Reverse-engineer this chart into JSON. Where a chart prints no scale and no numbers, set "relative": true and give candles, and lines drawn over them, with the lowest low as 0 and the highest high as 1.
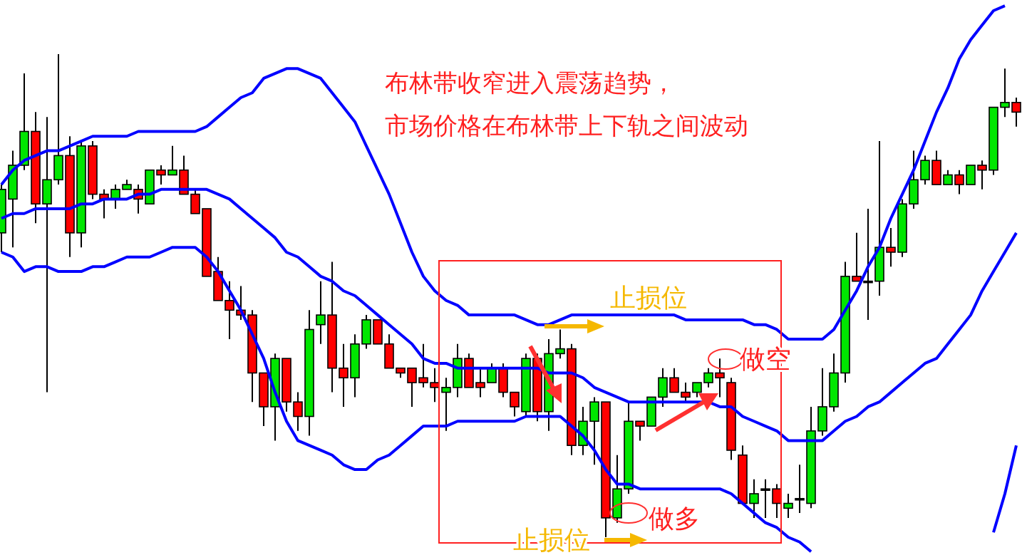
{
  "chart_data": {
    "type": "candlestick",
    "relative": true,
    "title": "布林带收窄进入震荡趋势，",
    "subtitle": "市场价格在布林带上下轨之间波动",
    "annotations": [
      "止损位",
      "做空",
      "做多",
      "止损位"
    ],
    "categories": [
      null,
      null,
      null,
      null,
      null,
      null,
      null,
      null,
      null,
      null,
      null,
      null,
      null,
      null,
      null,
      null,
      null,
      null,
      null,
      null,
      null,
      null,
      null,
      null,
      null,
      null,
      null,
      null,
      null,
      null,
      null,
      null,
      null,
      null,
      null,
      null,
      null,
      null,
      null,
      null,
      null,
      null,
      null,
      null,
      null,
      null,
      null,
      null,
      null,
      null,
      null,
      null,
      null,
      null,
      null,
      null,
      null,
      null,
      null,
      null,
      null,
      null,
      null,
      null,
      null,
      null,
      null,
      null,
      null,
      null,
      null,
      null,
      null,
      null,
      null,
      null,
      null,
      null,
      null,
      null,
      null,
      null,
      null,
      null,
      null,
      null,
      null,
      null,
      null,
      null
    ],
    "ohlc": [
      [
        0.63,
        0.73,
        0.59,
        0.72
      ],
      [
        0.7,
        0.8,
        0.6,
        0.77
      ],
      [
        0.77,
        0.96,
        0.76,
        0.84
      ],
      [
        0.84,
        0.88,
        0.65,
        0.69
      ],
      [
        0.69,
        0.87,
        0.3,
        0.74
      ],
      [
        0.74,
        1.0,
        0.73,
        0.79
      ],
      [
        0.79,
        0.83,
        0.58,
        0.63
      ],
      [
        0.63,
        0.82,
        0.6,
        0.81
      ],
      [
        0.81,
        0.82,
        0.7,
        0.71
      ],
      [
        0.71,
        0.72,
        0.66,
        0.7
      ],
      [
        0.7,
        0.73,
        0.68,
        0.72
      ],
      [
        0.72,
        0.74,
        0.72,
        0.73
      ],
      [
        0.72,
        0.73,
        0.67,
        0.7
      ],
      [
        0.69,
        0.76,
        0.69,
        0.76
      ],
      [
        0.76,
        0.77,
        0.73,
        0.75
      ],
      [
        0.75,
        0.81,
        0.75,
        0.76
      ],
      [
        0.76,
        0.79,
        0.71,
        0.71
      ],
      [
        0.71,
        0.72,
        0.67,
        0.67
      ],
      [
        0.68,
        0.68,
        0.54,
        0.54
      ],
      [
        0.55,
        0.58,
        0.49,
        0.49
      ],
      [
        0.49,
        0.53,
        0.41,
        0.47
      ],
      [
        0.47,
        0.52,
        0.45,
        0.46
      ],
      [
        0.46,
        0.47,
        0.28,
        0.34
      ],
      [
        0.34,
        0.34,
        0.23,
        0.27
      ],
      [
        0.27,
        0.38,
        0.2,
        0.37
      ],
      [
        0.37,
        0.37,
        0.26,
        0.28
      ],
      [
        0.28,
        0.3,
        0.22,
        0.25
      ],
      [
        0.25,
        0.47,
        0.21,
        0.43
      ],
      [
        0.44,
        0.53,
        0.4,
        0.46
      ],
      [
        0.46,
        0.57,
        0.3,
        0.35
      ],
      [
        0.35,
        0.4,
        0.27,
        0.33
      ],
      [
        0.33,
        0.42,
        0.29,
        0.4
      ],
      [
        0.4,
        0.46,
        0.39,
        0.45
      ],
      [
        0.45,
        0.45,
        0.4,
        0.4
      ],
      [
        0.4,
        0.42,
        0.35,
        0.35
      ],
      [
        0.35,
        0.35,
        0.33,
        0.34
      ],
      [
        0.35,
        0.35,
        0.27,
        0.32
      ],
      [
        0.33,
        0.4,
        0.31,
        0.32
      ],
      [
        0.32,
        0.35,
        0.28,
        0.31
      ],
      [
        0.3,
        0.33,
        0.22,
        0.31
      ],
      [
        0.31,
        0.4,
        0.29,
        0.37
      ],
      [
        0.37,
        0.38,
        0.31,
        0.31
      ],
      [
        0.32,
        0.35,
        0.29,
        0.31
      ],
      [
        0.32,
        0.36,
        0.32,
        0.35
      ],
      [
        0.35,
        0.36,
        0.29,
        0.3
      ],
      [
        0.3,
        0.3,
        0.25,
        0.27
      ],
      [
        0.26,
        0.38,
        0.25,
        0.37
      ],
      [
        0.37,
        0.38,
        0.24,
        0.26
      ],
      [
        0.26,
        0.41,
        0.22,
        0.38
      ],
      [
        0.38,
        0.43,
        0.37,
        0.39
      ],
      [
        0.39,
        0.4,
        0.17,
        0.19
      ],
      [
        0.19,
        0.27,
        0.17,
        0.24
      ],
      [
        0.24,
        0.29,
        0.15,
        0.28
      ],
      [
        0.28,
        0.28,
        0.0,
        0.04
      ],
      [
        0.04,
        0.17,
        0.03,
        0.1
      ],
      [
        0.1,
        0.28,
        0.09,
        0.24
      ],
      [
        0.24,
        0.24,
        0.2,
        0.23
      ],
      [
        0.23,
        0.29,
        0.23,
        0.29
      ],
      [
        0.29,
        0.35,
        0.27,
        0.33
      ],
      [
        0.33,
        0.35,
        0.3,
        0.3
      ],
      [
        0.3,
        0.32,
        0.28,
        0.29
      ],
      [
        0.3,
        0.32,
        0.29,
        0.32
      ],
      [
        0.32,
        0.35,
        0.31,
        0.34
      ],
      [
        0.34,
        0.37,
        0.29,
        0.33
      ],
      [
        0.32,
        0.33,
        0.16,
        0.18
      ],
      [
        0.17,
        0.19,
        0.07,
        0.07
      ],
      [
        0.07,
        0.12,
        0.04,
        0.09
      ],
      [
        0.1,
        0.12,
        0.04,
        0.1
      ],
      [
        0.1,
        0.11,
        0.04,
        0.07
      ],
      [
        0.06,
        0.09,
        0.04,
        0.07
      ],
      [
        0.08,
        0.15,
        0.05,
        0.08
      ],
      [
        0.07,
        0.27,
        0.06,
        0.22
      ],
      [
        0.22,
        0.35,
        0.21,
        0.27
      ],
      [
        0.27,
        0.38,
        0.26,
        0.34
      ],
      [
        0.34,
        0.57,
        0.32,
        0.54
      ],
      [
        0.54,
        0.63,
        0.53,
        0.53
      ],
      [
        0.53,
        0.68,
        0.45,
        0.53
      ],
      [
        0.53,
        0.82,
        0.5,
        0.6
      ],
      [
        0.6,
        0.64,
        0.56,
        0.59
      ],
      [
        0.59,
        0.7,
        0.58,
        0.69
      ],
      [
        0.69,
        0.8,
        0.68,
        0.74
      ],
      [
        0.74,
        0.79,
        0.73,
        0.78
      ],
      [
        0.78,
        0.8,
        0.73,
        0.73
      ],
      [
        0.73,
        0.76,
        0.73,
        0.75
      ],
      [
        0.75,
        0.76,
        0.71,
        0.73
      ],
      [
        0.73,
        0.77,
        0.73,
        0.77
      ],
      [
        0.77,
        0.78,
        0.72,
        0.76
      ],
      [
        0.76,
        0.89,
        0.75,
        0.89
      ],
      [
        0.89,
        0.97,
        0.87,
        0.9
      ],
      [
        0.9,
        0.91,
        0.85,
        0.88
      ]
    ],
    "series": [
      {
        "type": "line",
        "color": "#0000ff",
        "values": [
          0.73,
          0.76,
          0.78,
          0.79,
          0.8,
          0.8,
          0.81,
          0.82,
          0.83,
          0.83,
          0.83,
          0.83,
          0.84,
          0.84,
          0.84,
          0.84,
          0.84,
          0.84,
          0.85,
          0.87,
          0.89,
          0.91,
          0.92,
          0.95,
          0.96,
          0.97,
          0.97,
          0.96,
          0.95,
          0.92,
          0.89,
          0.86,
          0.81,
          0.76,
          0.71,
          0.65,
          0.59,
          0.54,
          0.51,
          0.49,
          0.48,
          0.46,
          0.46,
          0.46,
          0.46,
          0.46,
          0.45,
          0.44,
          0.44,
          0.45,
          0.46,
          0.46,
          0.46,
          0.46,
          0.46,
          0.46,
          0.46,
          0.46,
          0.46,
          0.46,
          0.45,
          0.45,
          0.45,
          0.45,
          0.45,
          0.45,
          0.44,
          0.44,
          0.43,
          0.41,
          0.41,
          0.41,
          0.41,
          0.43,
          0.47,
          0.51,
          0.56,
          0.6,
          0.66,
          0.71,
          0.76,
          0.82,
          0.88,
          0.93,
          0.99,
          1.03,
          1.06,
          1.09,
          1.1,
          null
        ]
      },
      {
        "type": "line",
        "color": "#0000ff",
        "values": [
          0.66,
          0.67,
          0.67,
          0.68,
          0.68,
          0.68,
          0.68,
          0.69,
          0.69,
          0.7,
          0.7,
          0.7,
          0.71,
          0.71,
          0.72,
          0.72,
          0.72,
          0.72,
          0.72,
          0.71,
          0.7,
          0.68,
          0.66,
          0.64,
          0.62,
          0.59,
          0.58,
          0.56,
          0.54,
          0.53,
          0.51,
          0.5,
          0.48,
          0.46,
          0.44,
          0.42,
          0.4,
          0.37,
          0.36,
          0.36,
          0.35,
          0.35,
          0.35,
          0.35,
          0.35,
          0.35,
          0.35,
          0.35,
          0.34,
          0.34,
          0.34,
          0.33,
          0.31,
          0.3,
          0.29,
          0.28,
          0.28,
          0.28,
          0.28,
          0.28,
          0.28,
          0.28,
          0.28,
          0.27,
          0.27,
          0.25,
          0.24,
          0.23,
          0.22,
          0.2,
          0.2,
          0.2,
          0.2,
          0.22,
          0.24,
          0.25,
          0.27,
          0.28,
          0.3,
          0.32,
          0.34,
          0.36,
          0.37,
          0.4,
          0.43,
          0.46,
          0.51,
          0.55,
          0.59,
          0.63
        ]
      },
      {
        "type": "line",
        "color": "#0000ff",
        "values": [
          0.59,
          0.58,
          0.55,
          0.56,
          0.56,
          0.55,
          0.55,
          0.55,
          0.56,
          0.56,
          0.57,
          0.58,
          0.58,
          0.58,
          0.59,
          0.6,
          0.6,
          0.6,
          0.58,
          0.55,
          0.51,
          0.47,
          0.42,
          0.37,
          0.3,
          0.24,
          0.2,
          0.19,
          0.18,
          0.17,
          0.15,
          0.14,
          0.14,
          0.16,
          0.17,
          0.19,
          0.21,
          0.23,
          0.23,
          0.23,
          0.24,
          0.24,
          0.24,
          0.24,
          0.24,
          0.24,
          0.25,
          0.25,
          0.25,
          0.25,
          0.23,
          0.21,
          0.18,
          0.14,
          0.11,
          0.11,
          0.1,
          0.1,
          0.1,
          0.1,
          0.1,
          0.1,
          0.1,
          0.1,
          0.09,
          0.07,
          0.05,
          0.03,
          0.02,
          0.0,
          -0.01,
          -0.03,
          null,
          null,
          null,
          null,
          null,
          null,
          null,
          null,
          null,
          null,
          null,
          null,
          null,
          null,
          null,
          0.01,
          0.09,
          0.19
        ]
      }
    ]
  }
}
